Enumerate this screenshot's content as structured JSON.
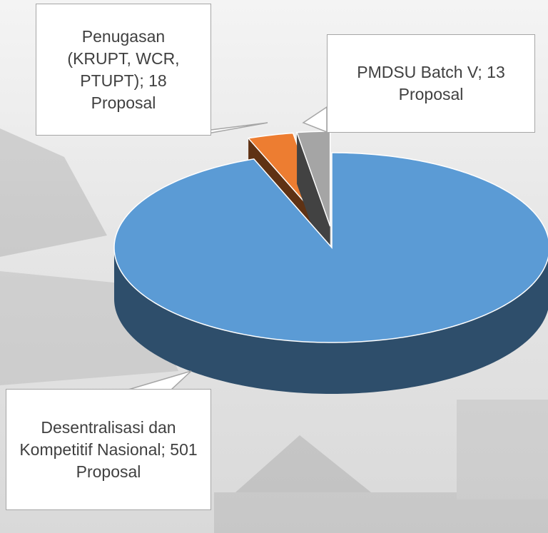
{
  "chart_data": {
    "type": "pie",
    "values": [
      501,
      18,
      13
    ],
    "value_labels": [
      "Desentralisasi dan Kompetitif Nasional; 501 Proposal",
      "Penugasan (KRUPT, WCR, PTUPT); 18 Proposal",
      "PMDSU Batch V; 13 Proposal"
    ],
    "colors": [
      "#5b9bd5",
      "#ed7d31",
      "#a5a5a5"
    ],
    "exploded": [
      false,
      true,
      true
    ],
    "three_d": true
  }
}
